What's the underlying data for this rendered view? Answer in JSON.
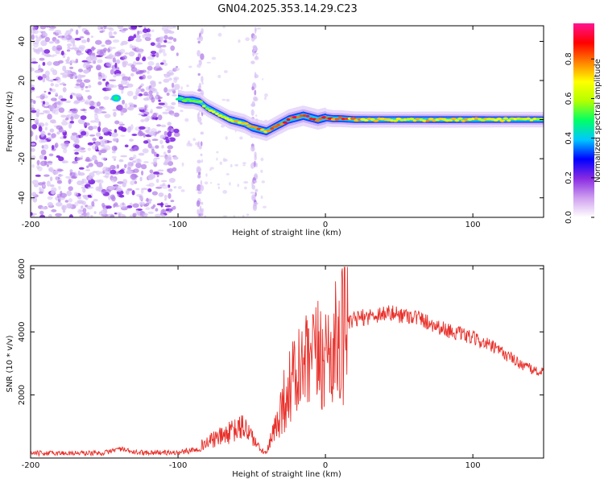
{
  "figure_title": "GN04.2025.353.14.29.C23",
  "chart_data": [
    {
      "type": "heatmap",
      "name": "spectrogram",
      "xlabel": "Height of straight line (km)",
      "ylabel": "Frequency (Hz)",
      "xlim": [
        -200,
        148
      ],
      "ylim": [
        -50,
        48
      ],
      "x_ticks": [
        -200,
        -100,
        0,
        100
      ],
      "y_ticks": [
        -40,
        -20,
        0,
        20,
        40
      ],
      "colorbar": {
        "label": "Normalized spectral amplitude",
        "range": [
          0,
          0.98
        ],
        "ticks": [
          0.0,
          0.2,
          0.4,
          0.6,
          0.8
        ],
        "colors": [
          "#ffffff",
          "#cfa0f0",
          "#8a2be2",
          "#0000ff",
          "#00c8ff",
          "#00ff66",
          "#b4ff00",
          "#ffff00",
          "#ff8000",
          "#ff0000",
          "#ff1493"
        ]
      },
      "noise_region": {
        "x_range": [
          -200,
          -100
        ],
        "f_range": [
          -50,
          48
        ]
      },
      "noise_stripes": [
        -85,
        -48
      ],
      "signal_ridge": {
        "x": [
          -100,
          -95,
          -90,
          -85,
          -80,
          -75,
          -70,
          -65,
          -60,
          -55,
          -50,
          -45,
          -40,
          -35,
          -30,
          -25,
          -20,
          -15,
          -10,
          -5,
          0,
          5,
          10,
          20,
          40,
          60,
          80,
          100,
          120,
          148
        ],
        "freq": [
          11,
          10,
          10,
          9,
          6,
          4,
          2,
          0,
          -1,
          -2,
          -4,
          -5,
          -6,
          -4,
          -2,
          0,
          1,
          2,
          1,
          0,
          1,
          0.5,
          0.5,
          0,
          0,
          0,
          0,
          0,
          0,
          0
        ],
        "amplitude": [
          0.5,
          0.55,
          0.6,
          0.6,
          0.62,
          0.65,
          0.68,
          0.7,
          0.72,
          0.75,
          0.78,
          0.8,
          0.82,
          0.85,
          0.88,
          0.9,
          0.92,
          0.9,
          0.92,
          0.9,
          0.9,
          0.88,
          0.85,
          0.78,
          0.72,
          0.72,
          0.75,
          0.72,
          0.68,
          0.65
        ]
      },
      "isolated_blob": {
        "x": -142,
        "freq": 11
      }
    },
    {
      "type": "line",
      "name": "snr",
      "xlabel": "Height of straight line (km)",
      "ylabel": "SNR (10 * v/v)",
      "xlim": [
        -200,
        148
      ],
      "ylim": [
        0,
        6100
      ],
      "x_ticks": [
        -200,
        -100,
        0,
        100
      ],
      "y_ticks": [
        2000,
        4000,
        6000
      ],
      "line_color": "#e8302a",
      "envelope": {
        "x": [
          -200,
          -150,
          -140,
          -130,
          -100,
          -90,
          -80,
          -70,
          -60,
          -55,
          -50,
          -45,
          -40,
          -35,
          -30,
          -25,
          -20,
          -15,
          -10,
          -5,
          0,
          5,
          10,
          15,
          20,
          30,
          40,
          50,
          60,
          70,
          80,
          90,
          100,
          110,
          120,
          130,
          140,
          148
        ],
        "y": [
          150,
          160,
          300,
          180,
          170,
          260,
          500,
          700,
          900,
          1000,
          700,
          300,
          150,
          800,
          1600,
          2200,
          2600,
          2800,
          3000,
          3200,
          3300,
          3500,
          3700,
          4200,
          4400,
          4500,
          4600,
          4550,
          4500,
          4300,
          4100,
          3950,
          3800,
          3600,
          3350,
          3050,
          2800,
          2700
        ]
      },
      "peak": {
        "x": 13,
        "y": 6050
      }
    }
  ]
}
